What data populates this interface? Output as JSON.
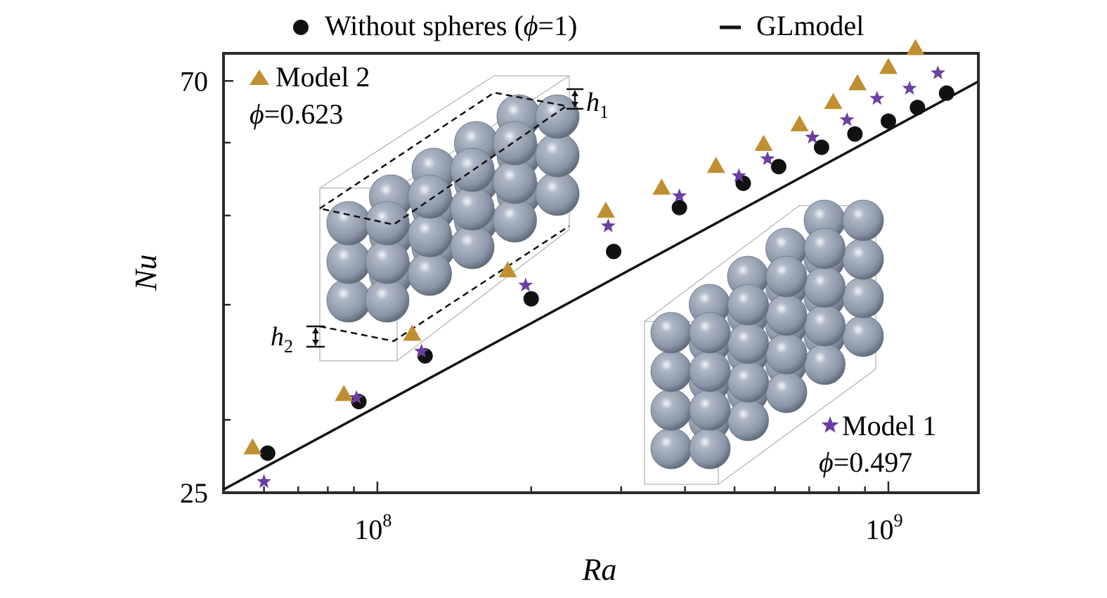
{
  "legend": {
    "circle_label": "Without spheres (",
    "phi": "ϕ",
    "circle_label_end": "=1)",
    "line_label": "GLmodel"
  },
  "annotations": {
    "model2_name": "Model 2",
    "model2_phi": "=0.623",
    "model1_name": "Model 1",
    "model1_phi": "=0.497",
    "phi": "ϕ",
    "h1": "h",
    "h1_sub": "1",
    "h2": "h",
    "h2_sub": "2"
  },
  "colors": {
    "without_spheres": "#111111",
    "model1": "#6b3fa0",
    "model2": "#c09030",
    "fit_line": "#111111",
    "sphere": "#8e9aab"
  },
  "chart_data": {
    "type": "scatter",
    "xlabel": "Ra",
    "ylabel": "Nu",
    "x_scale": "log",
    "y_scale": "log",
    "xlim": [
      50000000,
      1500000000
    ],
    "ylim": [
      25,
      75
    ],
    "x_tick_labels": [
      {
        "value": 100000000,
        "base": "10",
        "exp": "8"
      },
      {
        "value": 1000000000,
        "base": "10",
        "exp": "9"
      }
    ],
    "y_tick_labels": [
      {
        "value": 70,
        "label": "70"
      },
      {
        "value": 25,
        "label": "25"
      }
    ],
    "x_minor_ticks": [
      60000000,
      70000000,
      80000000,
      90000000,
      200000000,
      300000000,
      400000000,
      500000000,
      600000000,
      700000000,
      800000000,
      900000000
    ],
    "y_minor_ticks": [
      30,
      40,
      50,
      60
    ],
    "series": [
      {
        "name": "Without spheres (ϕ=1)",
        "marker": "circle",
        "points": [
          [
            61000000,
            27.6
          ],
          [
            92000000,
            31.4
          ],
          [
            124000000,
            35.2
          ],
          [
            200000000,
            40.6
          ],
          [
            290000000,
            45.7
          ],
          [
            390000000,
            51.0
          ],
          [
            520000000,
            54.2
          ],
          [
            610000000,
            56.5
          ],
          [
            740000000,
            59.3
          ],
          [
            860000000,
            61.3
          ],
          [
            1000000000,
            63.3
          ],
          [
            1140000000,
            65.5
          ],
          [
            1300000000,
            67.9
          ]
        ]
      },
      {
        "name": "Model 1",
        "label_phi": "=0.497",
        "marker": "star",
        "points": [
          [
            60000000,
            25.7
          ],
          [
            91000000,
            31.7
          ],
          [
            122000000,
            35.6
          ],
          [
            195000000,
            42.0
          ],
          [
            283000000,
            48.7
          ],
          [
            390000000,
            52.5
          ],
          [
            510000000,
            55.2
          ],
          [
            580000000,
            57.6
          ],
          [
            710000000,
            60.8
          ],
          [
            830000000,
            63.5
          ],
          [
            950000000,
            67.0
          ],
          [
            1100000000,
            68.7
          ],
          [
            1250000000,
            71.4
          ]
        ]
      },
      {
        "name": "Model 2",
        "label_phi": "=0.623",
        "marker": "triangle",
        "points": [
          [
            57000000,
            28.0
          ],
          [
            86000000,
            32.0
          ],
          [
            117000000,
            37.2
          ],
          [
            180000000,
            43.6
          ],
          [
            280000000,
            50.6
          ],
          [
            360000000,
            53.6
          ],
          [
            460000000,
            56.6
          ],
          [
            570000000,
            59.8
          ],
          [
            670000000,
            62.8
          ],
          [
            780000000,
            66.4
          ],
          [
            870000000,
            69.6
          ],
          [
            1000000000,
            72.5
          ],
          [
            1130000000,
            76.0
          ]
        ]
      },
      {
        "name": "GLmodel",
        "marker": "line",
        "points": [
          [
            50000000,
            25.2
          ],
          [
            1500000000,
            69.9
          ]
        ]
      }
    ]
  }
}
